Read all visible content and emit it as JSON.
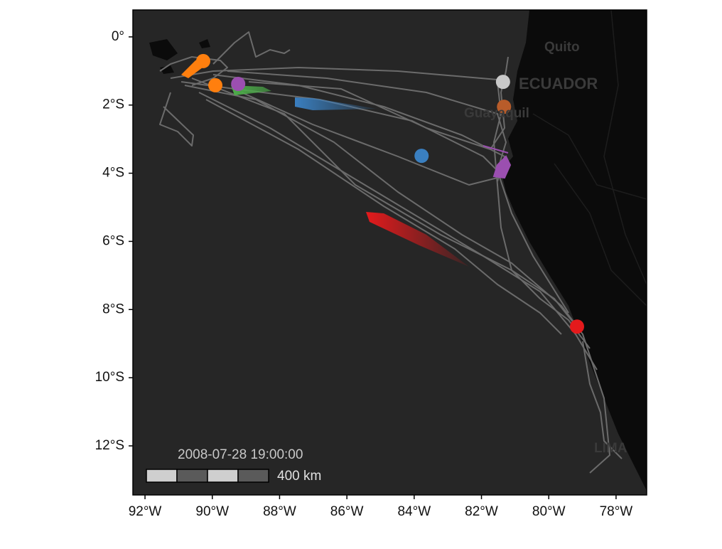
{
  "chart_data": {
    "type": "scatter",
    "xlim": [
      -92.36,
      -77.09
    ],
    "ylim": [
      -13.44,
      0.79
    ],
    "xticks": [
      {
        "value": -92,
        "label": "92°W"
      },
      {
        "value": -90,
        "label": "90°W"
      },
      {
        "value": -88,
        "label": "88°W"
      },
      {
        "value": -86,
        "label": "86°W"
      },
      {
        "value": -84,
        "label": "84°W"
      },
      {
        "value": -82,
        "label": "82°W"
      },
      {
        "value": -80,
        "label": "80°W"
      },
      {
        "value": -78,
        "label": "78°W"
      }
    ],
    "yticks": [
      {
        "value": 0,
        "label": "0°"
      },
      {
        "value": -2,
        "label": "2°S"
      },
      {
        "value": -4,
        "label": "4°S"
      },
      {
        "value": -6,
        "label": "6°S"
      },
      {
        "value": -8,
        "label": "8°S"
      },
      {
        "value": -10,
        "label": "10°S"
      },
      {
        "value": -12,
        "label": "12°S"
      }
    ],
    "x": [
      -90.27,
      -89.91,
      -89.23,
      -83.78,
      -79.16,
      -81.36,
      -81.33
    ],
    "y": [
      -0.71,
      -1.42,
      -1.38,
      -3.49,
      -8.5,
      -1.32,
      -2.05
    ],
    "colors": [
      "#ff7f0e",
      "#ff7f0e",
      "#9b4fb0",
      "#3a7fc0",
      "#e41a1c",
      "#c8c8c8",
      "#b85c2a"
    ],
    "timestamp": "2008-07-28 19:00:00",
    "scale_label": "400 km",
    "place_labels": [
      "Quito",
      "ECUADOR",
      "Guayaquil",
      "LIMA"
    ]
  }
}
